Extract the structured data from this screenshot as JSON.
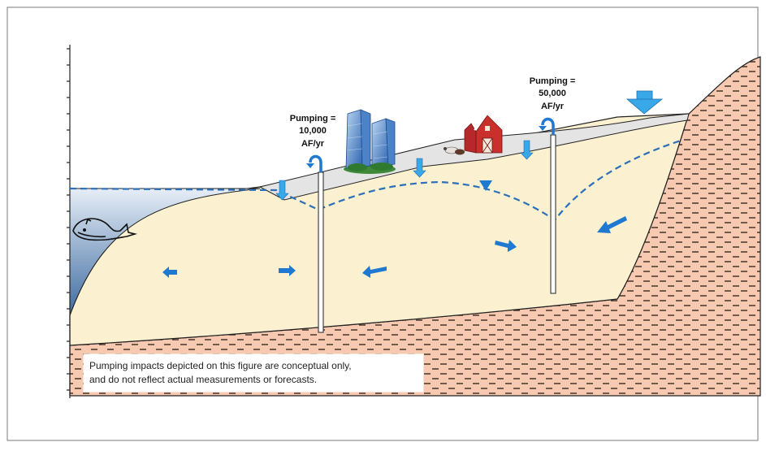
{
  "labels": {
    "well_left": [
      "Pumping =",
      "10,000",
      "AF/yr"
    ],
    "well_right": [
      "Pumping =",
      "50,000",
      "AF/yr"
    ]
  },
  "note": {
    "line1": "Pumping impacts depicted on this figure are conceptual only,",
    "line2": "and do not reflect actual measurements or forecasts."
  },
  "colors": {
    "aquifer": "#fbf0d0",
    "bedrock": "#f6c9b0",
    "bedrock_dash": "#3a2a20",
    "ocean_top": "#e6eef7",
    "ocean_bottom": "#3d6aa0",
    "surface": "#e4e4e4",
    "water_table": "#2b70b8",
    "arrow": "#1f79d0",
    "recharge": "#38a8e8"
  },
  "icons": [
    "whale-icon",
    "city-buildings-icon",
    "farm-barn-icon",
    "recharge-arrow-icon",
    "water-table-marker-icon"
  ]
}
